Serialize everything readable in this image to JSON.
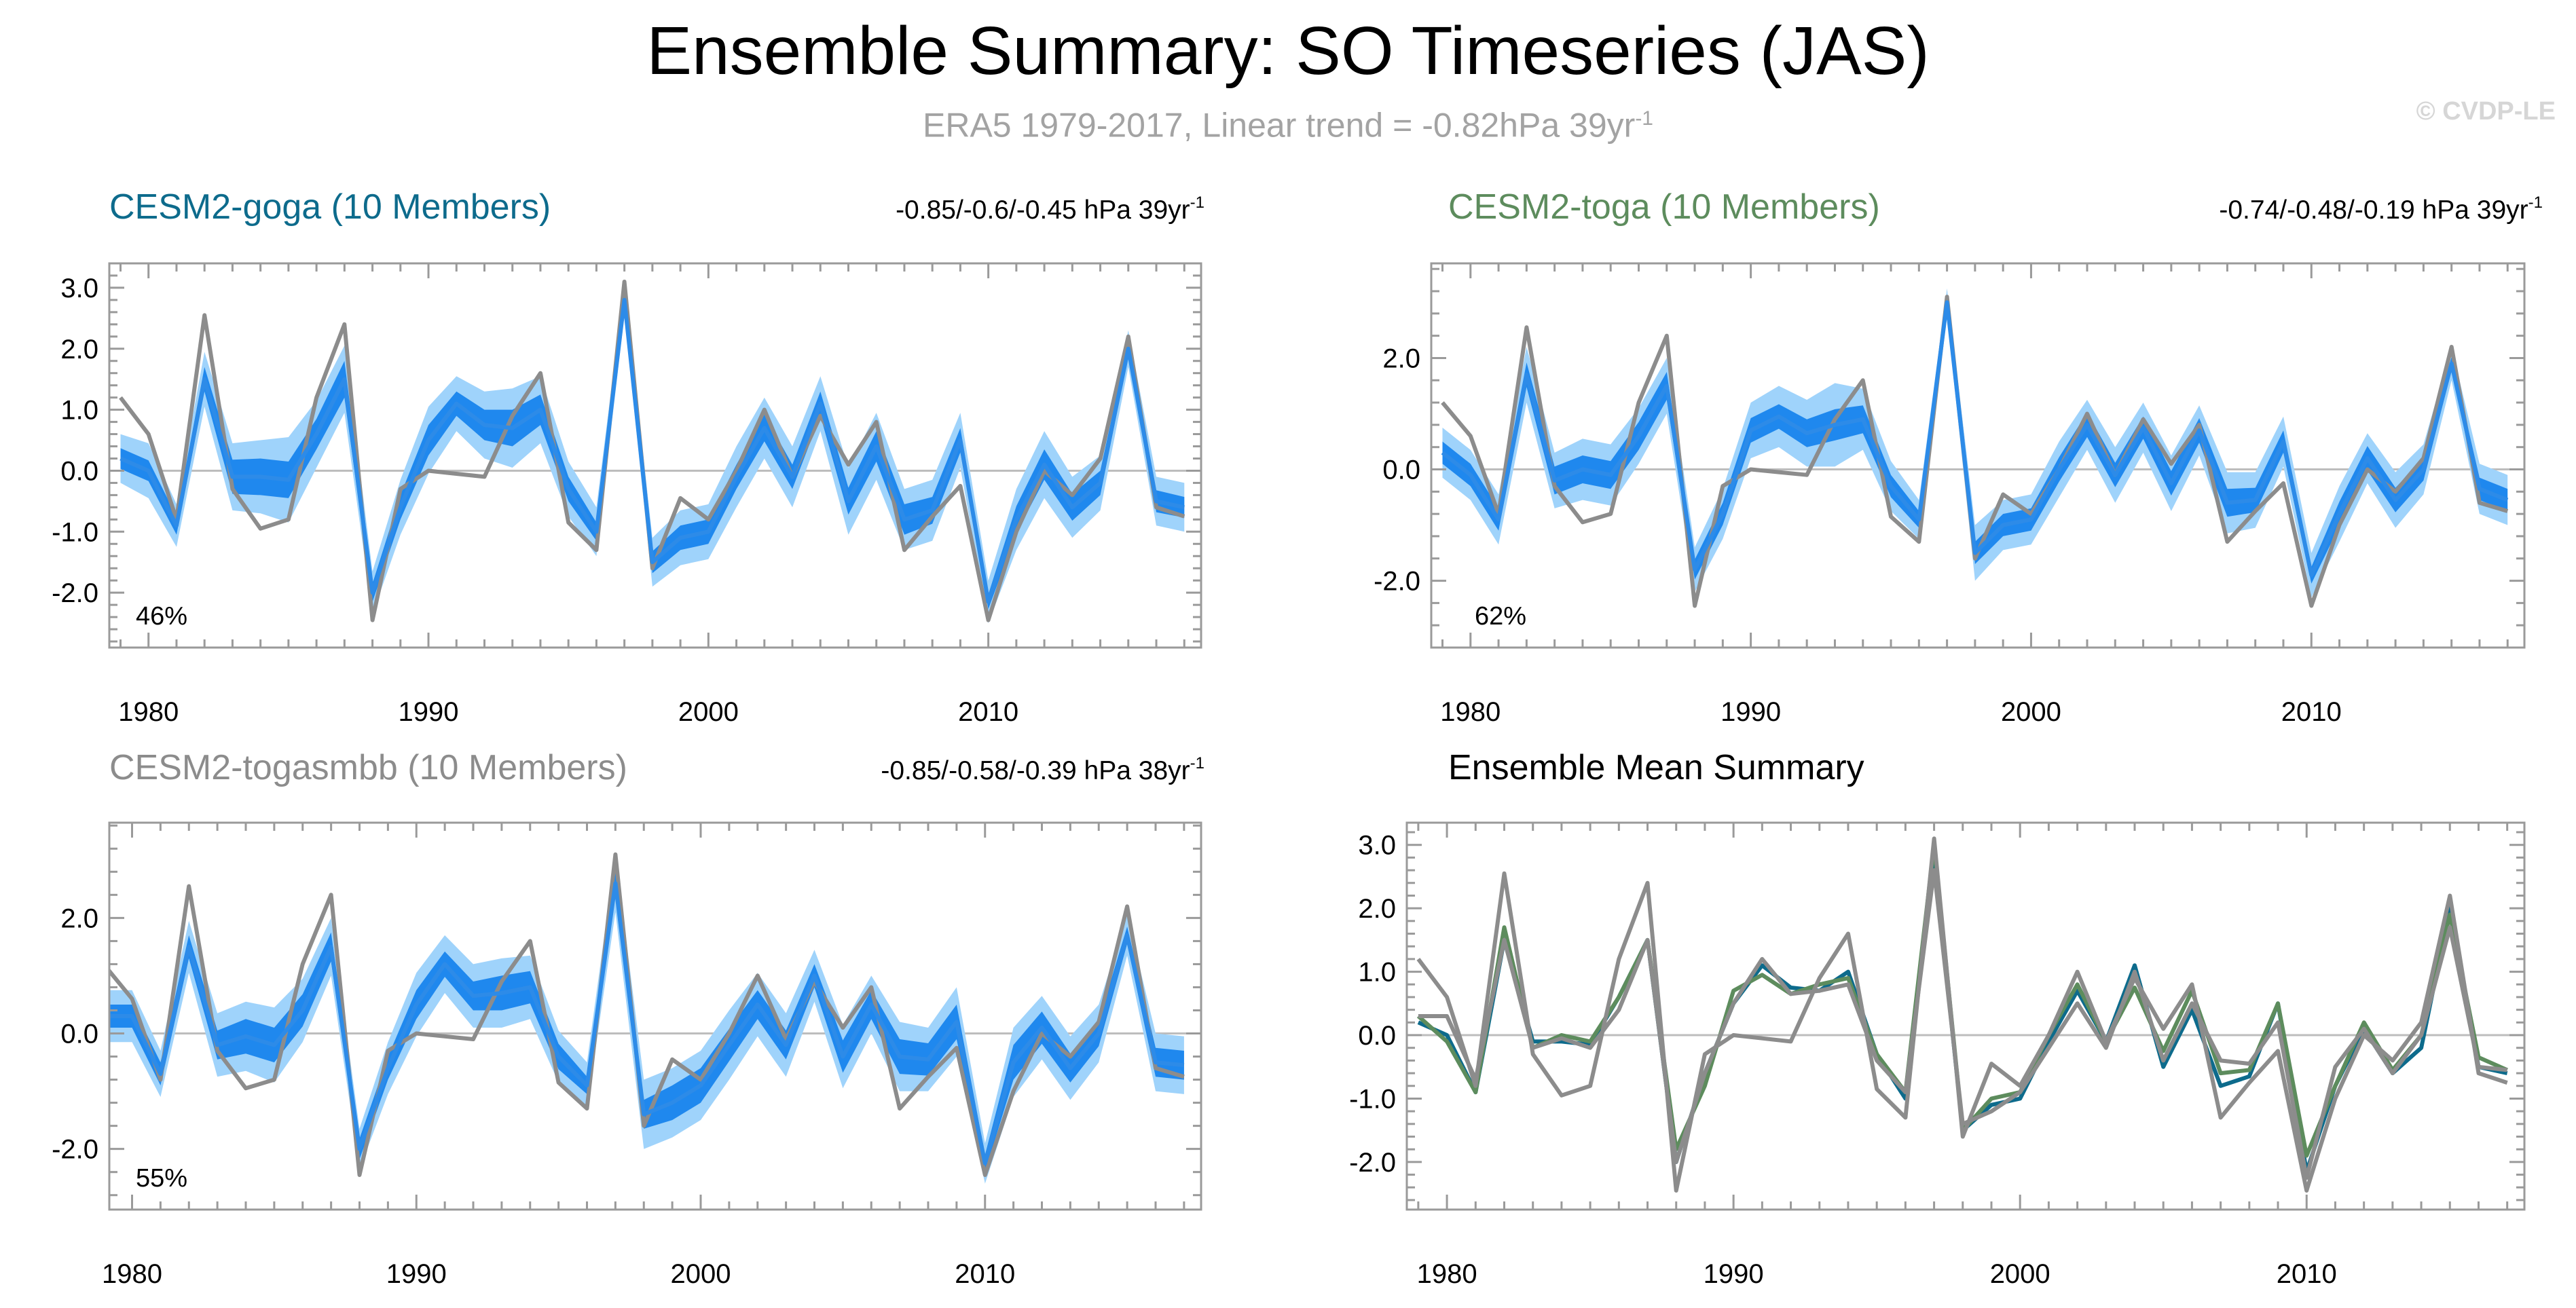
{
  "title": "Ensemble Summary: SO Timeseries (JAS)",
  "subtitle": {
    "text": "ERA5 1979-2017, Linear trend = -0.82hPa 39yr",
    "superscript": "-1"
  },
  "credit": "© CVDP-LE",
  "colors": {
    "obs": "#8c8c8c",
    "ens_line": "#2d8be8",
    "band_inner": "#1f88ee",
    "band_outer": "#9fd3fb",
    "goga_title": "#0d6b8c",
    "toga_title": "#5d8c5d",
    "togasmbb_title": "#8c8c8c",
    "mean_title": "#000000",
    "frame": "#9a9a9a",
    "zero_line": "#bdbdbd"
  },
  "chart_data": [
    {
      "type": "line",
      "title": "CESM2-goga (10 Members)",
      "title_color": "#0d6b8c",
      "trend": "-0.85/-0.6/-0.45 hPa 39yr",
      "trend_sup": "-1",
      "percent_label": "46%",
      "ylim": [
        -2.9,
        3.4
      ],
      "yticks": [
        -2,
        -1,
        0,
        1,
        2,
        3
      ],
      "ytick_labels": [
        "-2.0",
        "-1.0",
        "0.0",
        "1.0",
        "2.0",
        "3.0"
      ],
      "xlim": [
        1978.6,
        2017.6
      ],
      "xticks": [
        1980,
        1990,
        2000,
        2010
      ],
      "xtick_labels": [
        "1980",
        "1990",
        "2000",
        "2010"
      ],
      "x": [
        1979,
        1980,
        1981,
        1982,
        1983,
        1984,
        1985,
        1986,
        1987,
        1988,
        1989,
        1990,
        1991,
        1992,
        1993,
        1994,
        1995,
        1996,
        1997,
        1998,
        1999,
        2000,
        2001,
        2002,
        2003,
        2004,
        2005,
        2006,
        2007,
        2008,
        2009,
        2010,
        2011,
        2012,
        2013,
        2014,
        2015,
        2016,
        2017
      ],
      "series": [
        {
          "name": "ERA5",
          "values": [
            1.2,
            0.6,
            -0.8,
            2.55,
            -0.3,
            -0.95,
            -0.8,
            1.2,
            2.4,
            -2.45,
            -0.3,
            0.0,
            -0.05,
            -0.1,
            0.9,
            1.6,
            -0.85,
            -1.3,
            3.1,
            -1.6,
            -0.45,
            -0.8,
            0.0,
            1.0,
            -0.1,
            0.9,
            0.1,
            0.8,
            -1.3,
            -0.75,
            -0.25,
            -2.45,
            -1.0,
            0.0,
            -0.4,
            0.2,
            2.2,
            -0.6,
            -0.75
          ]
        },
        {
          "name": "ensemble mean",
          "values": [
            0.2,
            0.0,
            -0.9,
            1.5,
            -0.1,
            -0.1,
            -0.15,
            0.6,
            1.5,
            -2.0,
            -0.6,
            0.5,
            1.1,
            0.75,
            0.7,
            1.0,
            -0.3,
            -1.0,
            2.8,
            -1.5,
            -1.1,
            -1.0,
            -0.1,
            0.7,
            -0.1,
            1.1,
            -0.5,
            0.4,
            -0.8,
            -0.65,
            0.5,
            -2.15,
            -0.8,
            0.1,
            -0.6,
            -0.2,
            2.0,
            -0.5,
            -0.6
          ]
        }
      ],
      "band_inner_half_width": [
        0.17,
        0.17,
        0.15,
        0.2,
        0.28,
        0.3,
        0.3,
        0.25,
        0.3,
        0.15,
        0.2,
        0.25,
        0.2,
        0.25,
        0.3,
        0.25,
        0.2,
        0.15,
        0.1,
        0.18,
        0.2,
        0.2,
        0.2,
        0.22,
        0.2,
        0.2,
        0.22,
        0.25,
        0.25,
        0.22,
        0.2,
        0.12,
        0.22,
        0.25,
        0.22,
        0.2,
        0.12,
        0.18,
        0.17
      ],
      "band_outer_half_width": [
        0.4,
        0.45,
        0.35,
        0.45,
        0.55,
        0.6,
        0.7,
        0.55,
        0.55,
        0.35,
        0.45,
        0.55,
        0.45,
        0.55,
        0.65,
        0.55,
        0.45,
        0.4,
        0.25,
        0.4,
        0.45,
        0.45,
        0.5,
        0.5,
        0.5,
        0.45,
        0.55,
        0.55,
        0.5,
        0.5,
        0.45,
        0.35,
        0.5,
        0.55,
        0.5,
        0.45,
        0.3,
        0.4,
        0.4
      ]
    },
    {
      "type": "line",
      "title": "CESM2-toga (10 Members)",
      "title_color": "#5d8c5d",
      "trend": "-0.74/-0.48/-0.19 hPa 39yr",
      "trend_sup": "-1",
      "percent_label": "62%",
      "ylim": [
        -3.2,
        3.7
      ],
      "yticks": [
        -2,
        0,
        2
      ],
      "ytick_labels": [
        "-2.0",
        "0.0",
        "2.0"
      ],
      "xlim": [
        1978.6,
        2017.6
      ],
      "xticks": [
        1980,
        1990,
        2000,
        2010
      ],
      "xtick_labels": [
        "1980",
        "1990",
        "2000",
        "2010"
      ],
      "x": [
        1979,
        1980,
        1981,
        1982,
        1983,
        1984,
        1985,
        1986,
        1987,
        1988,
        1989,
        1990,
        1991,
        1992,
        1993,
        1994,
        1995,
        1996,
        1997,
        1998,
        1999,
        2000,
        2001,
        2002,
        2003,
        2004,
        2005,
        2006,
        2007,
        2008,
        2009,
        2010,
        2011,
        2012,
        2013,
        2014,
        2015,
        2016,
        2017
      ],
      "series": [
        {
          "name": "ERA5",
          "values": [
            1.2,
            0.6,
            -0.8,
            2.55,
            -0.3,
            -0.95,
            -0.8,
            1.2,
            2.4,
            -2.45,
            -0.3,
            0.0,
            -0.05,
            -0.1,
            0.9,
            1.6,
            -0.85,
            -1.3,
            3.1,
            -1.6,
            -0.45,
            -0.8,
            0.0,
            1.0,
            -0.1,
            0.9,
            0.1,
            0.8,
            -1.3,
            -0.75,
            -0.25,
            -2.45,
            -1.0,
            0.0,
            -0.4,
            0.2,
            2.2,
            -0.6,
            -0.75
          ]
        },
        {
          "name": "ensemble mean",
          "values": [
            0.3,
            -0.1,
            -0.9,
            1.7,
            -0.2,
            0.0,
            -0.1,
            0.6,
            1.5,
            -1.8,
            -0.8,
            0.7,
            0.95,
            0.65,
            0.8,
            0.9,
            -0.3,
            -0.9,
            3.0,
            -1.5,
            -1.0,
            -0.9,
            0.0,
            0.8,
            -0.1,
            0.75,
            -0.25,
            0.7,
            -0.6,
            -0.55,
            0.5,
            -1.9,
            -0.8,
            0.2,
            -0.55,
            0.0,
            1.9,
            -0.35,
            -0.55
          ]
        }
      ],
      "band_inner_half_width": [
        0.2,
        0.2,
        0.2,
        0.22,
        0.25,
        0.25,
        0.25,
        0.25,
        0.25,
        0.18,
        0.2,
        0.22,
        0.22,
        0.25,
        0.28,
        0.25,
        0.2,
        0.15,
        0.1,
        0.2,
        0.2,
        0.2,
        0.22,
        0.22,
        0.22,
        0.2,
        0.22,
        0.22,
        0.25,
        0.22,
        0.2,
        0.15,
        0.22,
        0.22,
        0.22,
        0.2,
        0.12,
        0.2,
        0.2
      ],
      "band_outer_half_width": [
        0.45,
        0.45,
        0.45,
        0.5,
        0.5,
        0.55,
        0.55,
        0.5,
        0.5,
        0.4,
        0.45,
        0.5,
        0.55,
        0.6,
        0.75,
        0.55,
        0.45,
        0.35,
        0.25,
        0.5,
        0.45,
        0.45,
        0.5,
        0.45,
        0.5,
        0.45,
        0.5,
        0.45,
        0.55,
        0.5,
        0.45,
        0.4,
        0.5,
        0.45,
        0.5,
        0.45,
        0.3,
        0.45,
        0.45
      ]
    },
    {
      "type": "line",
      "title": "CESM2-togasmbb (10 Members)",
      "title_color": "#8c8c8c",
      "trend": "-0.85/-0.58/-0.39 hPa 38yr",
      "trend_sup": "-1",
      "percent_label": "55%",
      "ylim": [
        -3.05,
        3.65
      ],
      "yticks": [
        -2,
        0,
        2
      ],
      "ytick_labels": [
        "-2.0",
        "0.0",
        "2.0"
      ],
      "xlim": [
        1979.2,
        2017.6
      ],
      "xticks": [
        1980,
        1990,
        2000,
        2010
      ],
      "xtick_labels": [
        "1980",
        "1990",
        "2000",
        "2010"
      ],
      "x": [
        1979,
        1980,
        1981,
        1982,
        1983,
        1984,
        1985,
        1986,
        1987,
        1988,
        1989,
        1990,
        1991,
        1992,
        1993,
        1994,
        1995,
        1996,
        1997,
        1998,
        1999,
        2000,
        2001,
        2002,
        2003,
        2004,
        2005,
        2006,
        2007,
        2008,
        2009,
        2010,
        2011,
        2012,
        2013,
        2014,
        2015,
        2016,
        2017
      ],
      "series": [
        {
          "name": "ERA5",
          "values": [
            1.2,
            0.6,
            -0.8,
            2.55,
            -0.3,
            -0.95,
            -0.8,
            1.2,
            2.4,
            -2.45,
            -0.3,
            0.0,
            -0.05,
            -0.1,
            0.9,
            1.6,
            -0.85,
            -1.3,
            3.1,
            -1.6,
            -0.45,
            -0.8,
            0.0,
            1.0,
            -0.1,
            0.9,
            0.1,
            0.8,
            -1.3,
            -0.75,
            -0.25,
            -2.45,
            -1.0,
            0.0,
            -0.4,
            0.2,
            2.2,
            -0.6,
            -0.75
          ]
        },
        {
          "name": "ensemble mean",
          "values": [
            0.3,
            0.3,
            -0.7,
            1.5,
            -0.2,
            -0.05,
            -0.2,
            0.4,
            1.5,
            -2.0,
            -0.6,
            0.5,
            1.2,
            0.65,
            0.7,
            0.8,
            -0.4,
            -0.9,
            2.6,
            -1.4,
            -1.2,
            -0.9,
            -0.2,
            0.5,
            -0.2,
            1.0,
            -0.4,
            0.5,
            -0.4,
            -0.45,
            0.2,
            -2.25,
            -0.5,
            0.1,
            -0.6,
            0.0,
            1.7,
            -0.5,
            -0.55
          ]
        }
      ],
      "band_inner_half_width": [
        0.2,
        0.2,
        0.2,
        0.2,
        0.25,
        0.3,
        0.3,
        0.28,
        0.25,
        0.18,
        0.2,
        0.25,
        0.22,
        0.25,
        0.3,
        0.28,
        0.22,
        0.15,
        0.2,
        0.25,
        0.3,
        0.3,
        0.28,
        0.25,
        0.25,
        0.2,
        0.28,
        0.25,
        0.3,
        0.28,
        0.3,
        0.15,
        0.3,
        0.28,
        0.25,
        0.22,
        0.15,
        0.25,
        0.25
      ],
      "band_outer_half_width": [
        0.45,
        0.45,
        0.4,
        0.45,
        0.55,
        0.6,
        0.65,
        0.55,
        0.5,
        0.35,
        0.45,
        0.55,
        0.5,
        0.55,
        0.6,
        0.55,
        0.45,
        0.4,
        0.5,
        0.6,
        0.6,
        0.6,
        0.6,
        0.55,
        0.55,
        0.45,
        0.55,
        0.5,
        0.6,
        0.55,
        0.6,
        0.35,
        0.6,
        0.55,
        0.55,
        0.5,
        0.35,
        0.5,
        0.5
      ]
    },
    {
      "type": "line",
      "title": "Ensemble Mean Summary",
      "title_color": "#000000",
      "ylim": [
        -2.75,
        3.35
      ],
      "yticks": [
        -2,
        -1,
        0,
        1,
        2,
        3
      ],
      "ytick_labels": [
        "-2.0",
        "-1.0",
        "0.0",
        "1.0",
        "2.0",
        "3.0"
      ],
      "xlim": [
        1978.6,
        2017.6
      ],
      "xticks": [
        1980,
        1990,
        2000,
        2010
      ],
      "xtick_labels": [
        "1980",
        "1990",
        "2000",
        "2010"
      ],
      "x": [
        1979,
        1980,
        1981,
        1982,
        1983,
        1984,
        1985,
        1986,
        1987,
        1988,
        1989,
        1990,
        1991,
        1992,
        1993,
        1994,
        1995,
        1996,
        1997,
        1998,
        1999,
        2000,
        2001,
        2002,
        2003,
        2004,
        2005,
        2006,
        2007,
        2008,
        2009,
        2010,
        2011,
        2012,
        2013,
        2014,
        2015,
        2016,
        2017
      ],
      "series": [
        {
          "name": "CESM2-goga",
          "color": "#0d6b8c",
          "values": [
            0.2,
            0.0,
            -0.9,
            1.5,
            -0.1,
            -0.1,
            -0.15,
            0.6,
            1.5,
            -2.0,
            -0.6,
            0.5,
            1.1,
            0.75,
            0.7,
            1.0,
            -0.3,
            -1.0,
            2.8,
            -1.5,
            -1.1,
            -1.0,
            -0.1,
            0.7,
            -0.1,
            1.1,
            -0.5,
            0.4,
            -0.8,
            -0.65,
            0.5,
            -2.15,
            -0.8,
            0.1,
            -0.6,
            -0.2,
            2.0,
            -0.5,
            -0.6
          ]
        },
        {
          "name": "CESM2-toga",
          "color": "#5d8c5d",
          "values": [
            0.3,
            -0.1,
            -0.9,
            1.7,
            -0.2,
            0.0,
            -0.1,
            0.6,
            1.5,
            -1.8,
            -0.8,
            0.7,
            0.95,
            0.65,
            0.8,
            0.9,
            -0.3,
            -0.9,
            3.0,
            -1.5,
            -1.0,
            -0.9,
            0.0,
            0.8,
            -0.1,
            0.75,
            -0.25,
            0.7,
            -0.6,
            -0.55,
            0.5,
            -1.9,
            -0.8,
            0.2,
            -0.55,
            0.0,
            1.9,
            -0.35,
            -0.55
          ]
        },
        {
          "name": "CESM2-togasmbb",
          "color": "#8c8c8c",
          "values": [
            0.3,
            0.3,
            -0.7,
            1.5,
            -0.2,
            -0.05,
            -0.2,
            0.4,
            1.5,
            -2.0,
            -0.6,
            0.5,
            1.2,
            0.65,
            0.7,
            0.8,
            -0.4,
            -0.9,
            2.6,
            -1.4,
            -1.2,
            -0.9,
            -0.2,
            0.5,
            -0.2,
            1.0,
            -0.4,
            0.5,
            -0.4,
            -0.45,
            0.2,
            -2.25,
            -0.5,
            0.1,
            -0.6,
            0.0,
            1.7,
            -0.5,
            -0.55
          ]
        },
        {
          "name": "ERA5",
          "color": "#8c8c8c",
          "values": [
            1.2,
            0.6,
            -0.8,
            2.55,
            -0.3,
            -0.95,
            -0.8,
            1.2,
            2.4,
            -2.45,
            -0.3,
            0.0,
            -0.05,
            -0.1,
            0.9,
            1.6,
            -0.85,
            -1.3,
            3.1,
            -1.6,
            -0.45,
            -0.8,
            0.0,
            1.0,
            -0.1,
            0.9,
            0.1,
            0.8,
            -1.3,
            -0.75,
            -0.25,
            -2.45,
            -1.0,
            0.0,
            -0.4,
            0.2,
            2.2,
            -0.6,
            -0.75
          ]
        }
      ]
    }
  ]
}
